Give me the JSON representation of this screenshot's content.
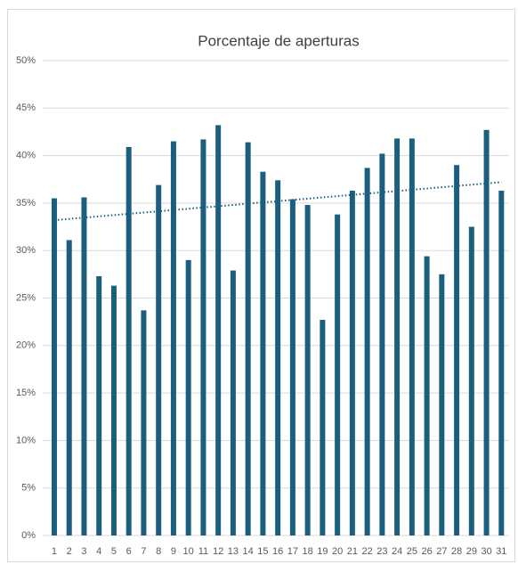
{
  "chart_data": {
    "type": "bar",
    "title": "Porcentaje de aperturas",
    "categories": [
      "1",
      "2",
      "3",
      "4",
      "5",
      "6",
      "7",
      "8",
      "9",
      "10",
      "11",
      "12",
      "13",
      "14",
      "15",
      "16",
      "17",
      "18",
      "19",
      "20",
      "21",
      "22",
      "23",
      "24",
      "25",
      "26",
      "27",
      "28",
      "29",
      "30",
      "31"
    ],
    "values": [
      35.5,
      31.1,
      35.6,
      27.3,
      26.3,
      40.9,
      23.7,
      36.9,
      41.5,
      29.0,
      41.7,
      43.2,
      27.9,
      41.4,
      38.3,
      37.4,
      35.4,
      34.8,
      22.7,
      33.8,
      36.3,
      38.7,
      40.2,
      41.8,
      41.8,
      29.4,
      27.5,
      39.0,
      32.5,
      42.7,
      36.3
    ],
    "color": "#1b5e7e",
    "ylim": [
      0,
      50
    ],
    "yticks": [
      {
        "value": 0,
        "label": "0%"
      },
      {
        "value": 5,
        "label": "5%"
      },
      {
        "value": 10,
        "label": "10%"
      },
      {
        "value": 15,
        "label": "15%"
      },
      {
        "value": 20,
        "label": "20%"
      },
      {
        "value": 25,
        "label": "25%"
      },
      {
        "value": 30,
        "label": "30%"
      },
      {
        "value": 35,
        "label": "35%"
      },
      {
        "value": 40,
        "label": "40%"
      },
      {
        "value": 45,
        "label": "45%"
      },
      {
        "value": 50,
        "label": "50%"
      }
    ],
    "grid": true,
    "trendline": {
      "values": [
        33.2,
        37.2
      ],
      "color": "#1b5e7e"
    }
  }
}
